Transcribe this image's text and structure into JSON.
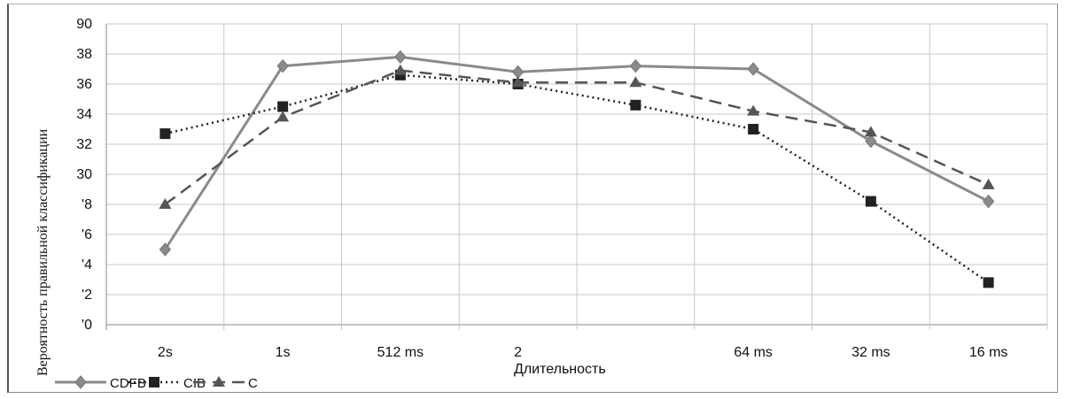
{
  "chart_data": {
    "type": "line",
    "title": "",
    "xlabel": "Длительность",
    "ylabel": "Вероятность правильной классификации",
    "categories": [
      "2s",
      "1s",
      "512 ms",
      "2",
      "",
      "64 ms",
      "32 ms",
      "16 ms"
    ],
    "ylim": [
      70,
      90
    ],
    "ytick_labels": [
      "'0",
      "'2",
      "'4",
      "'6",
      "'8",
      "30",
      "32",
      "34",
      "36",
      "38",
      "90"
    ],
    "grid": true,
    "legend_position": "bottom-left",
    "series": [
      {
        "name": "CDFB",
        "values": [
          75.0,
          87.2,
          87.8,
          86.8,
          87.2,
          87.0,
          82.2,
          78.2
        ],
        "color": "#8a8a8a",
        "dash": "solid",
        "marker": "diamond"
      },
      {
        "name": "CIB",
        "values": [
          82.7,
          84.5,
          86.6,
          86.0,
          84.6,
          83.0,
          78.2,
          72.8
        ],
        "color": "#222222",
        "dash": "dotted",
        "marker": "square"
      },
      {
        "name": "C",
        "values": [
          78.0,
          83.8,
          86.9,
          86.1,
          86.1,
          84.2,
          82.8,
          79.3
        ],
        "color": "#555555",
        "dash": "dashed",
        "marker": "triangle"
      }
    ]
  }
}
